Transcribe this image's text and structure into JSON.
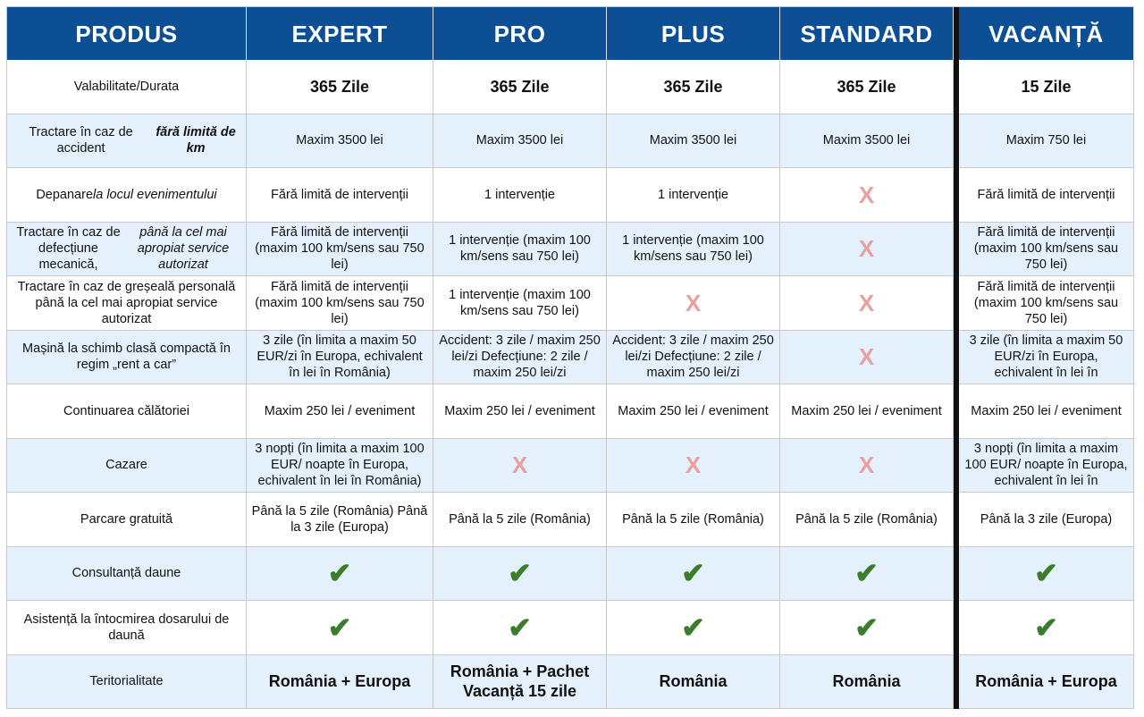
{
  "headers": [
    "PRODUS",
    "EXPERT",
    "PRO",
    "PLUS",
    "STANDARD",
    "VACANȚĂ"
  ],
  "rows": [
    {
      "label_html": "Valabilitate/Durata",
      "cells": [
        "365 Zile",
        "365 Zile",
        "365 Zile",
        "365 Zile",
        "15 Zile"
      ],
      "big": true
    },
    {
      "label_html": "Tractare în caz de accident <strong><em>fără limită de km</em></strong>",
      "cells": [
        "Maxim 3500 lei",
        "Maxim 3500 lei",
        "Maxim 3500 lei",
        "Maxim 3500 lei",
        "Maxim 750 lei"
      ]
    },
    {
      "label_html": "Depanare <em>la locul evenimentului</em>",
      "cells": [
        "Fără limită de intervenții",
        "1 intervenție",
        "1 intervenție",
        "X",
        "Fără limită de intervenții"
      ]
    },
    {
      "label_html": "Tractare în caz de defecțiune mecanică, <em>până la cel mai apropiat service autorizat</em>",
      "cells": [
        "Fără limită de intervenții (maxim 100 km/sens sau 750 lei)",
        "1 intervenție (maxim 100 km/sens sau 750 lei)",
        "1 intervenție (maxim 100 km/sens sau 750 lei)",
        "X",
        "Fără limită de intervenții (maxim 100 km/sens sau 750 lei)"
      ]
    },
    {
      "label_html": "Tractare în caz de greșeală personală până la cel mai apropiat service autorizat",
      "cells": [
        "Fără limită de intervenții (maxim 100 km/sens sau 750 lei)",
        "1 intervenție (maxim 100 km/sens sau 750 lei)",
        "X",
        "X",
        "Fără limită de intervenții (maxim 100 km/sens sau 750 lei)"
      ]
    },
    {
      "label_html": "Mașină la schimb clasă compactă în regim „rent a car”",
      "cells": [
        "3 zile (în limita a maxim 50 EUR/zi în Europa, echivalent în lei în România)",
        "Accident: 3 zile / maxim 250 lei/zi Defecțiune: 2 zile / maxim 250 lei/zi",
        "Accident: 3 zile / maxim 250 lei/zi Defecțiune: 2 zile / maxim 250 lei/zi",
        "X",
        "3 zile (în limita a maxim 50 EUR/zi în Europa, echivalent în lei în"
      ]
    },
    {
      "label_html": "Continuarea călătoriei",
      "cells": [
        "Maxim 250 lei / eveniment",
        "Maxim 250 lei / eveniment",
        "Maxim 250 lei / eveniment",
        "Maxim 250 lei / eveniment",
        "Maxim 250 lei / eveniment"
      ]
    },
    {
      "label_html": "Cazare",
      "cells": [
        "3 nopți (în limita a maxim 100 EUR/ noapte în Europa, echivalent în lei în România)",
        "X",
        "X",
        "X",
        "3 nopți (în limita a maxim 100 EUR/ noapte în Europa, echivalent în lei în"
      ]
    },
    {
      "label_html": "Parcare gratuită",
      "cells": [
        "Până la 5 zile (România) Până la 3 zile (Europa)",
        "Până la 5 zile (România)",
        "Până la 5 zile (România)",
        "Până la 5 zile (România)",
        "Până la 3 zile (Europa)"
      ]
    },
    {
      "label_html": "Consultanță daune",
      "cells": [
        "✔",
        "✔",
        "✔",
        "✔",
        "✔"
      ]
    },
    {
      "label_html": "Asistență la întocmirea dosarului de daună",
      "cells": [
        "✔",
        "✔",
        "✔",
        "✔",
        "✔"
      ]
    },
    {
      "label_html": "Teritorialitate",
      "cells": [
        "România + Europa",
        "România + Pachet Vacanță 15 zile",
        "România",
        "România",
        "România + Europa"
      ],
      "big": true
    }
  ],
  "colors": {
    "header_bg": "#0d4f95",
    "alt_row_bg": "#e4f1fc",
    "check": "#3b7d2a",
    "x_mark": "#e8a0a0"
  }
}
